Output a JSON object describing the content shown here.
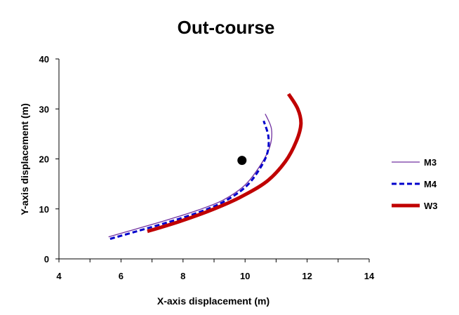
{
  "chart_data": {
    "type": "line",
    "title": "Out-course",
    "xlabel": "X-axis displacement (m)",
    "ylabel": "Y-axis displacement (m)",
    "xlim": [
      4,
      14
    ],
    "ylim": [
      0,
      40
    ],
    "xticks": [
      4,
      6,
      8,
      10,
      12,
      14
    ],
    "yticks": [
      0,
      10,
      20,
      30,
      40
    ],
    "grid": false,
    "legend_position": "right",
    "series": [
      {
        "name": "M3",
        "color": "#7030A0",
        "style": "solid-thin",
        "points": [
          [
            5.6,
            4.4
          ],
          [
            6.5,
            6.0
          ],
          [
            7.5,
            7.8
          ],
          [
            8.5,
            9.8
          ],
          [
            9.3,
            11.8
          ],
          [
            10.0,
            14.8
          ],
          [
            10.5,
            18.8
          ],
          [
            10.8,
            22.5
          ],
          [
            10.85,
            26.0
          ],
          [
            10.65,
            29.0
          ]
        ]
      },
      {
        "name": "M4",
        "color": "#0000CC",
        "style": "dashed",
        "points": [
          [
            5.65,
            4.0
          ],
          [
            6.5,
            5.5
          ],
          [
            7.5,
            7.3
          ],
          [
            8.5,
            9.3
          ],
          [
            9.3,
            11.4
          ],
          [
            10.0,
            14.3
          ],
          [
            10.45,
            17.8
          ],
          [
            10.72,
            21.2
          ],
          [
            10.75,
            24.5
          ],
          [
            10.6,
            27.6
          ]
        ]
      },
      {
        "name": "W3",
        "color": "#C00000",
        "style": "solid-thick",
        "points": [
          [
            6.85,
            5.5
          ],
          [
            7.8,
            7.3
          ],
          [
            8.8,
            9.5
          ],
          [
            9.8,
            12.2
          ],
          [
            10.7,
            15.5
          ],
          [
            11.3,
            19.5
          ],
          [
            11.65,
            23.5
          ],
          [
            11.8,
            27.0
          ],
          [
            11.7,
            30.0
          ],
          [
            11.4,
            33.0
          ]
        ]
      }
    ],
    "markers": [
      {
        "x": 9.9,
        "y": 19.7,
        "color": "#000000"
      }
    ]
  }
}
